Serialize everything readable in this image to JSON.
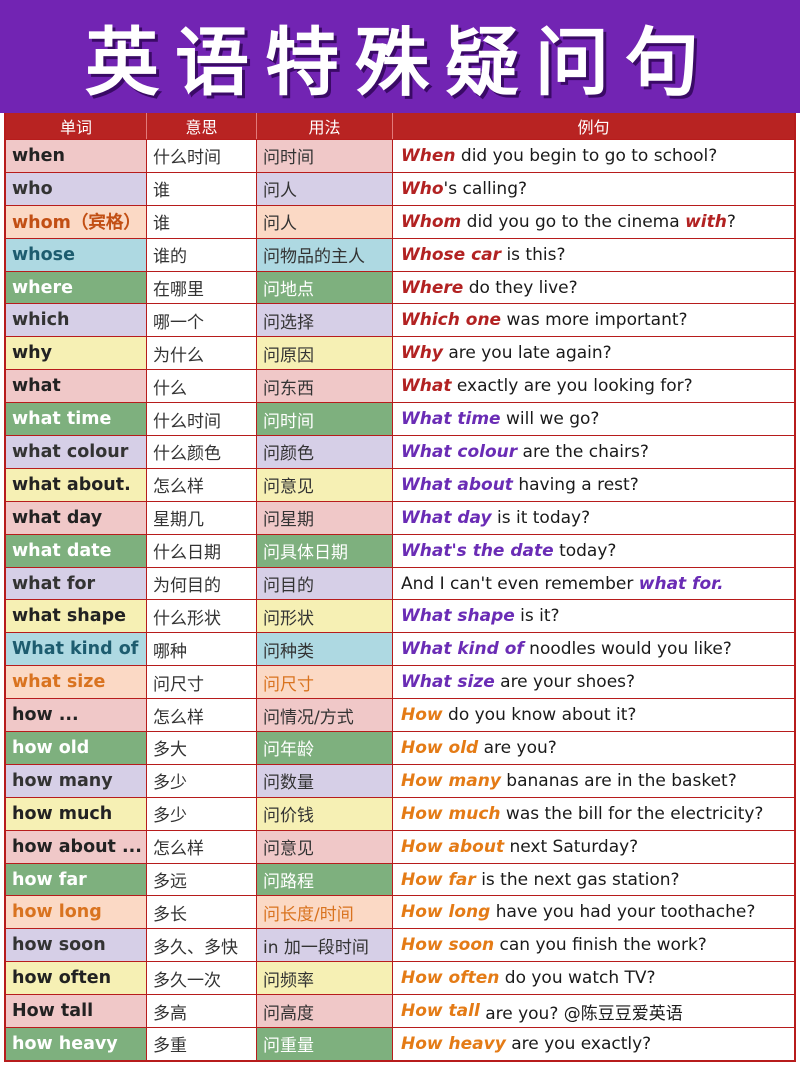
{
  "title": "英语特殊疑问句",
  "headers": {
    "word": "单词",
    "meaning": "意思",
    "usage": "用法",
    "example": "例句"
  },
  "colors": {
    "pink": "#f0c8c8",
    "lavender": "#d6cfe7",
    "peach": "#fbd9c5",
    "teal": "#aed9e2",
    "green": "#7eb07e",
    "yellow": "#f6f0b4",
    "banner": "#7224b3",
    "header": "#b82322",
    "kw_red": "#b22222",
    "kw_purple": "#6a2cb5",
    "kw_orange": "#e47b16"
  },
  "rows": [
    {
      "word": "when",
      "meaning": "什么时间",
      "usage": "问时间",
      "bg": "#f0c8c8",
      "wc": "#222222",
      "uc": "#333333",
      "ex": {
        "pre": "",
        "kw": "When",
        "post": " did you begin to go to school?",
        "kw2": "",
        "post2": "",
        "kc": "#b22222"
      }
    },
    {
      "word": "who",
      "meaning": "谁",
      "usage": "问人",
      "bg": "#d6cfe7",
      "wc": "#333333",
      "uc": "#333333",
      "ex": {
        "pre": "",
        "kw": "Who",
        "post": "'s calling?",
        "kw2": "",
        "post2": "",
        "kc": "#b22222"
      }
    },
    {
      "word": "whom（宾格）",
      "meaning": "谁",
      "usage": "问人",
      "bg": "#fbd9c5",
      "wc": "#c24f14",
      "uc": "#333333",
      "ex": {
        "pre": "",
        "kw": "Whom",
        "post": " did you go to the cinema ",
        "kw2": "with",
        "post2": "?",
        "kc": "#b22222"
      }
    },
    {
      "word": "whose",
      "meaning": "谁的",
      "usage": "问物品的主人",
      "bg": "#aed9e2",
      "wc": "#1d5c6f",
      "uc": "#333333",
      "ex": {
        "pre": "",
        "kw": "Whose car",
        "post": " is this?",
        "kw2": "",
        "post2": "",
        "kc": "#b22222"
      }
    },
    {
      "word": "where",
      "meaning": "在哪里",
      "usage": "问地点",
      "bg": "#7eb07e",
      "wc": "#ffffff",
      "uc": "#ffffff",
      "ex": {
        "pre": "",
        "kw": "Where",
        "post": " do they live?",
        "kw2": "",
        "post2": "",
        "kc": "#b22222"
      }
    },
    {
      "word": "which",
      "meaning": "哪一个",
      "usage": "问选择",
      "bg": "#d6cfe7",
      "wc": "#333333",
      "uc": "#333333",
      "ex": {
        "pre": "",
        "kw": "Which one",
        "post": " was more important?",
        "kw2": "",
        "post2": "",
        "kc": "#b22222"
      }
    },
    {
      "word": "why",
      "meaning": "为什么",
      "usage": "问原因",
      "bg": "#f6f0b4",
      "wc": "#222222",
      "uc": "#333333",
      "ex": {
        "pre": "",
        "kw": "Why",
        "post": " are you late again?",
        "kw2": "",
        "post2": "",
        "kc": "#b22222"
      }
    },
    {
      "word": "what",
      "meaning": "什么",
      "usage": "问东西",
      "bg": "#f0c8c8",
      "wc": "#222222",
      "uc": "#333333",
      "ex": {
        "pre": "",
        "kw": "What",
        "post": " exactly are you looking for?",
        "kw2": "",
        "post2": "",
        "kc": "#b22222"
      }
    },
    {
      "word": "what time",
      "meaning": "什么时间",
      "usage": "问时间",
      "bg": "#7eb07e",
      "wc": "#ffffff",
      "uc": "#ffffff",
      "ex": {
        "pre": "",
        "kw": "What time",
        "post": " will we go?",
        "kw2": "",
        "post2": "",
        "kc": "#6a2cb5"
      }
    },
    {
      "word": "what colour",
      "meaning": "什么颜色",
      "usage": "问颜色",
      "bg": "#d6cfe7",
      "wc": "#333333",
      "uc": "#333333",
      "ex": {
        "pre": "",
        "kw": "What colour",
        "post": " are the chairs?",
        "kw2": "",
        "post2": "",
        "kc": "#6a2cb5"
      }
    },
    {
      "word": "what about.",
      "meaning": "怎么样",
      "usage": "问意见",
      "bg": "#f6f0b4",
      "wc": "#222222",
      "uc": "#333333",
      "ex": {
        "pre": "",
        "kw": "What about",
        "post": " having a rest?",
        "kw2": "",
        "post2": "",
        "kc": "#6a2cb5"
      }
    },
    {
      "word": "what day",
      "meaning": "星期几",
      "usage": "问星期",
      "bg": "#f0c8c8",
      "wc": "#222222",
      "uc": "#333333",
      "ex": {
        "pre": "",
        "kw": "What day",
        "post": " is it today?",
        "kw2": "",
        "post2": "",
        "kc": "#6a2cb5"
      }
    },
    {
      "word": "what date",
      "meaning": "什么日期",
      "usage": "问具体日期",
      "bg": "#7eb07e",
      "wc": "#ffffff",
      "uc": "#ffffff",
      "ex": {
        "pre": "",
        "kw": "What's the date",
        "post": " today?",
        "kw2": "",
        "post2": "",
        "kc": "#6a2cb5"
      }
    },
    {
      "word": "what for",
      "meaning": "为何目的",
      "usage": "问目的",
      "bg": "#d6cfe7",
      "wc": "#333333",
      "uc": "#333333",
      "ex": {
        "pre": "And I can't even remember ",
        "kw": "what for.",
        "post": "",
        "kw2": "",
        "post2": "",
        "kc": "#6a2cb5"
      }
    },
    {
      "word": "what shape",
      "meaning": "什么形状",
      "usage": "问形状",
      "bg": "#f6f0b4",
      "wc": "#222222",
      "uc": "#333333",
      "ex": {
        "pre": "",
        "kw": "What shape",
        "post": " is it?",
        "kw2": "",
        "post2": "",
        "kc": "#6a2cb5"
      }
    },
    {
      "word": "What kind of",
      "meaning": "哪种",
      "usage": "问种类",
      "bg": "#aed9e2",
      "wc": "#1d5c6f",
      "uc": "#333333",
      "ex": {
        "pre": "",
        "kw": "What kind of",
        "post": " noodles would you like?",
        "kw2": "",
        "post2": "",
        "kc": "#6a2cb5"
      }
    },
    {
      "word": "what size",
      "meaning": "问尺寸",
      "usage": "问尺寸",
      "bg": "#fbd9c5",
      "wc": "#d9731f",
      "uc": "#d9731f",
      "ex": {
        "pre": "",
        "kw": "What size",
        "post": " are your shoes?",
        "kw2": "",
        "post2": "",
        "kc": "#6a2cb5"
      }
    },
    {
      "word": "how ...",
      "meaning": "怎么样",
      "usage": "问情况/方式",
      "bg": "#f0c8c8",
      "wc": "#222222",
      "uc": "#333333",
      "ex": {
        "pre": "",
        "kw": "How",
        "post": " do you know about it?",
        "kw2": "",
        "post2": "",
        "kc": "#e47b16"
      }
    },
    {
      "word": "how old",
      "meaning": "多大",
      "usage": "问年龄",
      "bg": "#7eb07e",
      "wc": "#ffffff",
      "uc": "#ffffff",
      "ex": {
        "pre": "",
        "kw": "How old",
        "post": " are you?",
        "kw2": "",
        "post2": "",
        "kc": "#e47b16"
      }
    },
    {
      "word": "how many",
      "meaning": "多少",
      "usage": "问数量",
      "bg": "#d6cfe7",
      "wc": "#333333",
      "uc": "#333333",
      "ex": {
        "pre": "",
        "kw": "How many",
        "post": " bananas are in the basket?",
        "kw2": "",
        "post2": "",
        "kc": "#e47b16"
      }
    },
    {
      "word": "how much",
      "meaning": "多少",
      "usage": "问价钱",
      "bg": "#f6f0b4",
      "wc": "#222222",
      "uc": "#333333",
      "ex": {
        "pre": "",
        "kw": "How much",
        "post": " was the bill for the electricity?",
        "kw2": "",
        "post2": "",
        "kc": "#e47b16"
      }
    },
    {
      "word": "how about ...",
      "meaning": "怎么样",
      "usage": "问意见",
      "bg": "#f0c8c8",
      "wc": "#222222",
      "uc": "#333333",
      "ex": {
        "pre": "",
        "kw": "How about",
        "post": " next Saturday?",
        "kw2": "",
        "post2": "",
        "kc": "#e47b16"
      }
    },
    {
      "word": "how far",
      "meaning": "多远",
      "usage": "问路程",
      "bg": "#7eb07e",
      "wc": "#ffffff",
      "uc": "#ffffff",
      "ex": {
        "pre": "",
        "kw": "How far",
        "post": " is the next gas station?",
        "kw2": "",
        "post2": "",
        "kc": "#e47b16"
      }
    },
    {
      "word": "how long",
      "meaning": "多长",
      "usage": "问长度/时间",
      "bg": "#fbd9c5",
      "wc": "#d9731f",
      "uc": "#d9731f",
      "ex": {
        "pre": "",
        "kw": "How long",
        "post": " have you had your toothache?",
        "kw2": "",
        "post2": "",
        "kc": "#e47b16"
      }
    },
    {
      "word": "how soon",
      "meaning": "多久、多快",
      "usage": "in 加一段时间",
      "bg": "#d6cfe7",
      "wc": "#333333",
      "uc": "#333333",
      "ex": {
        "pre": "",
        "kw": "How soon",
        "post": " can you finish the work?",
        "kw2": "",
        "post2": "",
        "kc": "#e47b16"
      }
    },
    {
      "word": "how often",
      "meaning": "多久一次",
      "usage": "问频率",
      "bg": "#f6f0b4",
      "wc": "#222222",
      "uc": "#333333",
      "ex": {
        "pre": "",
        "kw": "How often",
        "post": " do you watch TV?",
        "kw2": "",
        "post2": "",
        "kc": "#e47b16"
      }
    },
    {
      "word": "How tall",
      "meaning": "多高",
      "usage": "问高度",
      "bg": "#f0c8c8",
      "wc": "#222222",
      "uc": "#333333",
      "ex": {
        "pre": "",
        "kw": "How tall",
        "post": " are you? @陈豆豆爱英语",
        "kw2": "",
        "post2": "",
        "kc": "#e47b16"
      }
    },
    {
      "word": "how heavy",
      "meaning": "多重",
      "usage": "问重量",
      "bg": "#7eb07e",
      "wc": "#ffffff",
      "uc": "#ffffff",
      "ex": {
        "pre": "",
        "kw": "How heavy",
        "post": " are you exactly?",
        "kw2": "",
        "post2": "",
        "kc": "#e47b16"
      }
    }
  ]
}
